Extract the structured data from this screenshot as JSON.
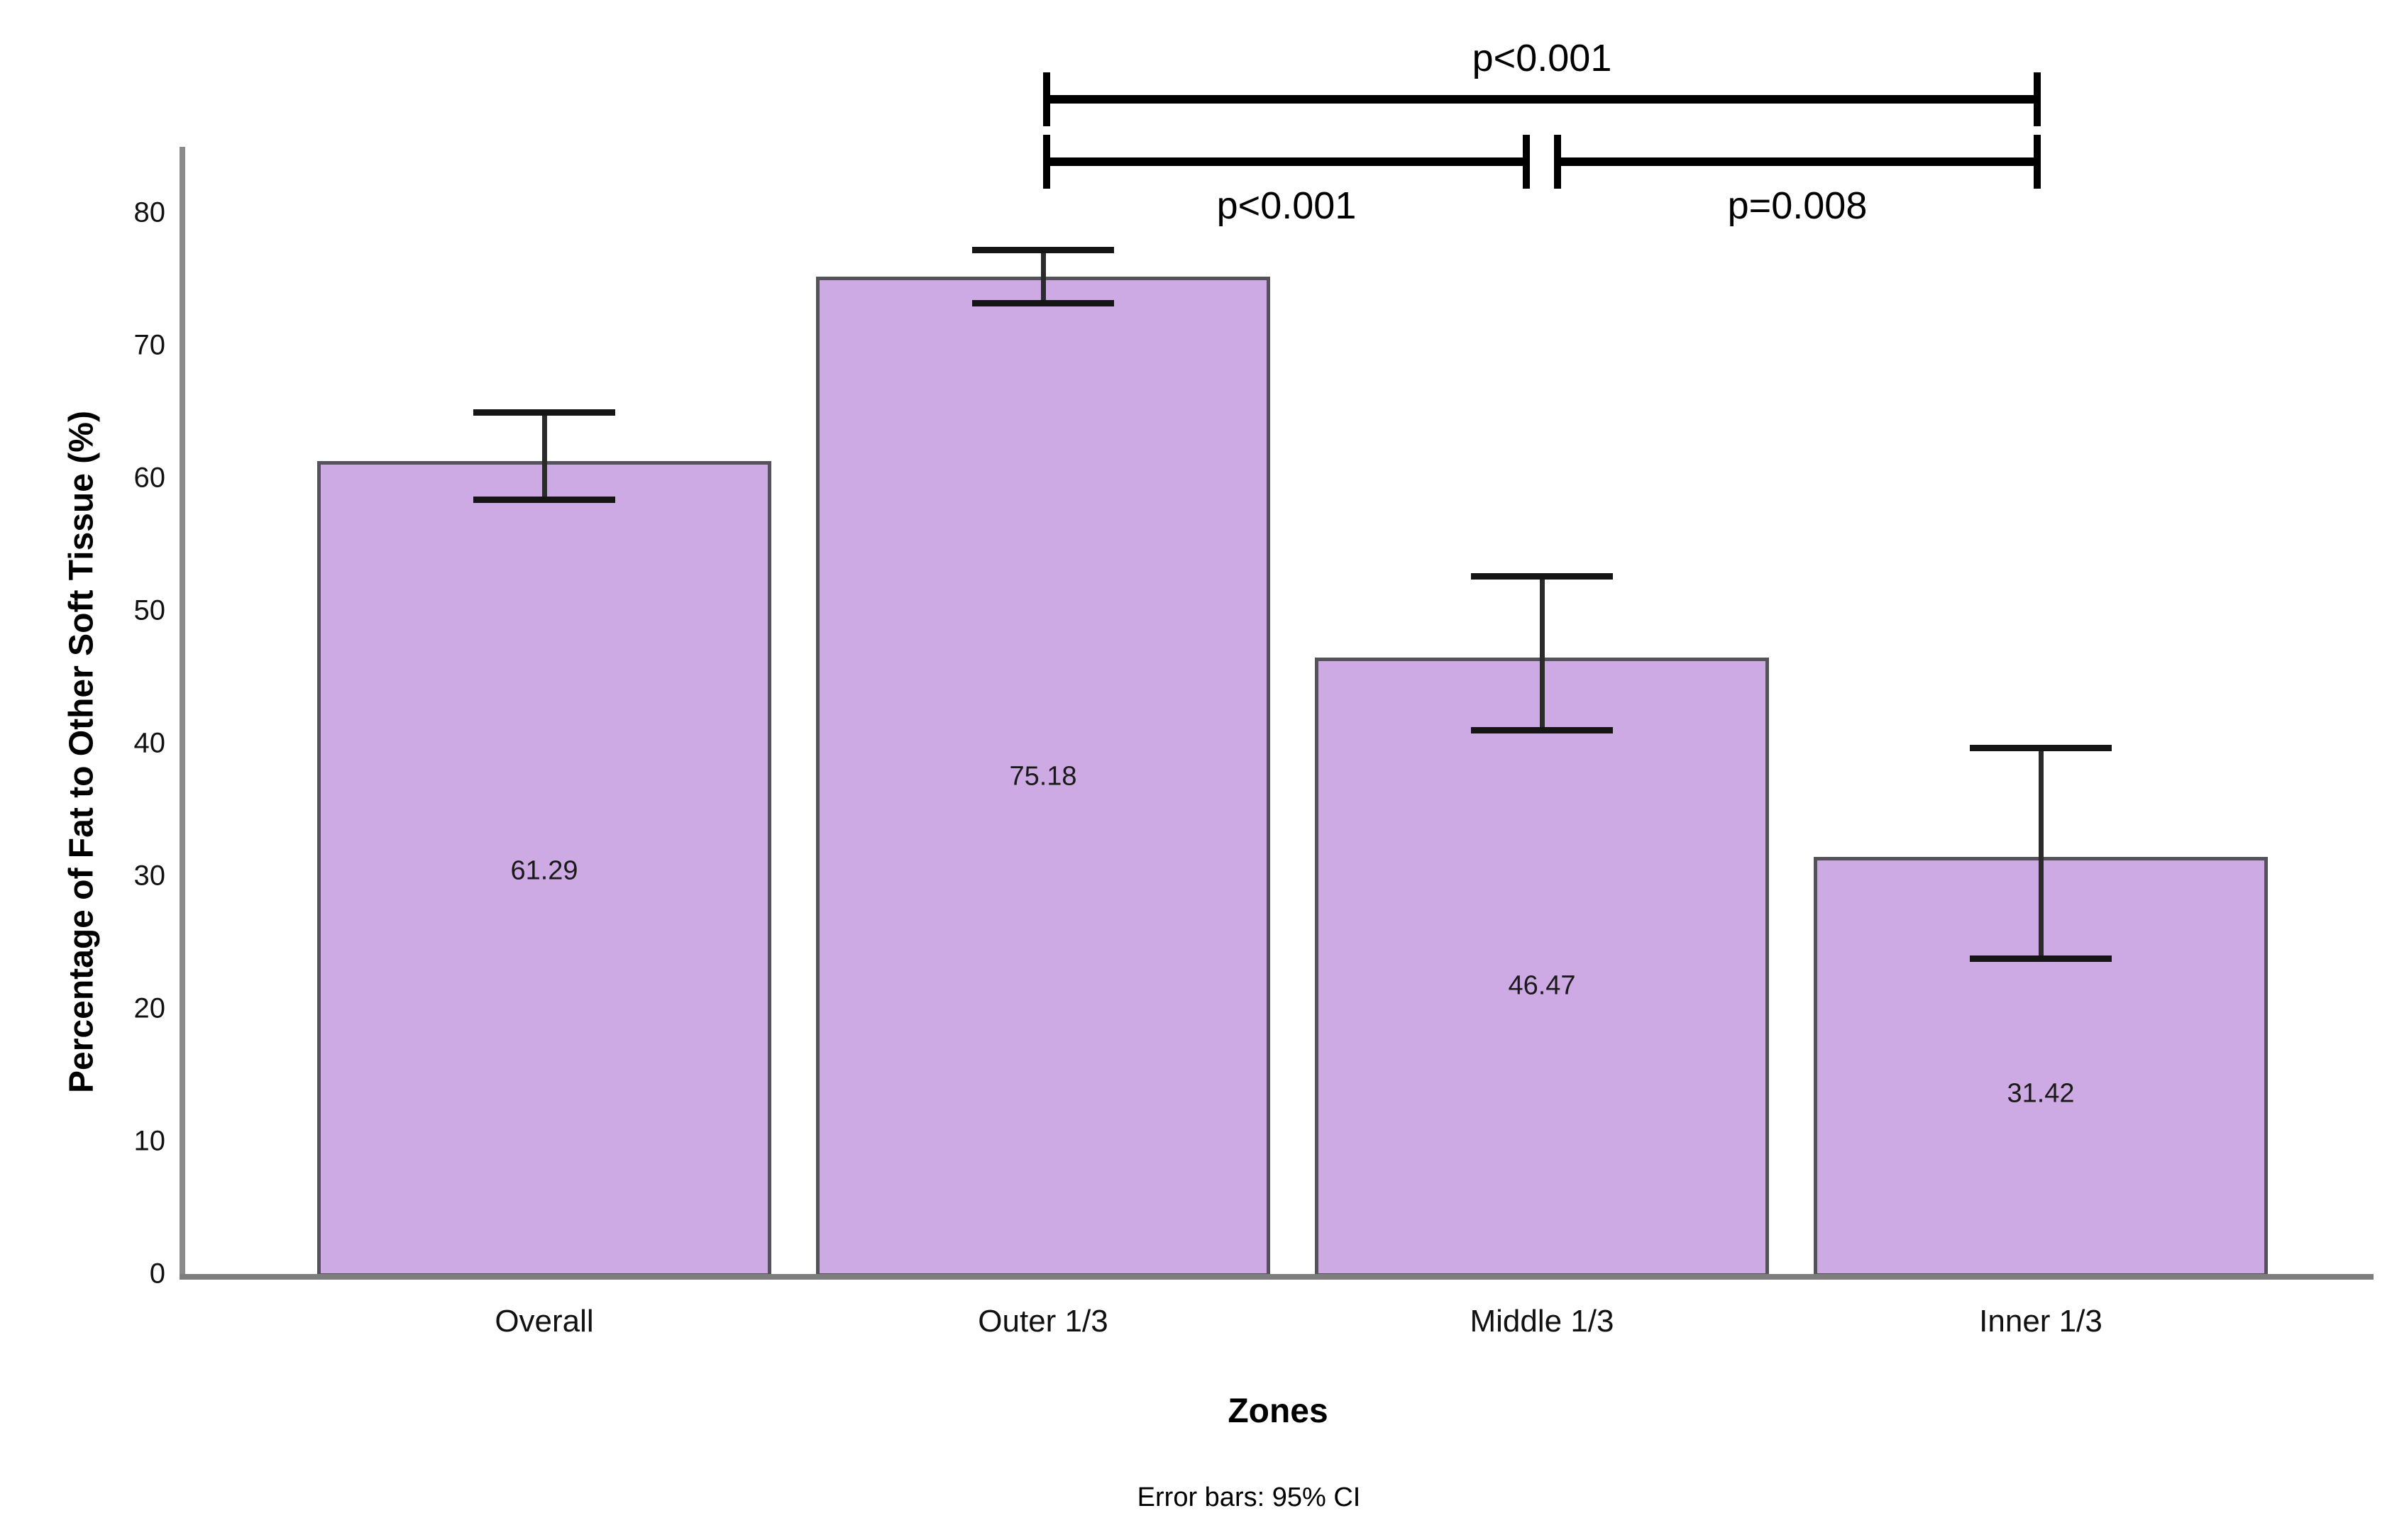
{
  "chart_data": {
    "type": "bar",
    "title": "",
    "categories": [
      "Overall",
      "Outer 1/3",
      "Middle 1/3",
      "Inner 1/3"
    ],
    "values": [
      61.29,
      75.18,
      46.47,
      31.42
    ],
    "value_labels": [
      "61.29",
      "75.18",
      "46.47",
      "31.42"
    ],
    "ci_lower": [
      58.4,
      73.2,
      41.0,
      23.8
    ],
    "ci_upper": [
      65.0,
      77.2,
      52.6,
      39.7
    ],
    "xlabel": "Zones",
    "ylabel": "Percentage of Fat to Other Soft Tissue (%)",
    "caption": "Error bars: 95% CI",
    "y_ticks": [
      0,
      10,
      20,
      30,
      40,
      50,
      60,
      70,
      80
    ],
    "ylim": [
      0,
      85
    ],
    "grid": false,
    "legend": "none",
    "bar_fill": "#CDAAE4",
    "bar_border": "#55525A",
    "error_bar_color": "#1E1E1E",
    "axis_color": "#8A8A8A",
    "value_label_positions": [
      30.4,
      37.5,
      21.7,
      13.6
    ],
    "significance": [
      {
        "from": "Outer 1/3",
        "to": "Inner 1/3",
        "label": "p<0.001",
        "row": "top",
        "label_side": "above"
      },
      {
        "from": "Outer 1/3",
        "to": "Middle 1/3",
        "label": "p<0.001",
        "row": "bottom",
        "label_side": "below"
      },
      {
        "from": "Middle 1/3",
        "to": "Inner 1/3",
        "label": "p=0.008",
        "row": "bottom",
        "label_side": "below"
      }
    ]
  }
}
